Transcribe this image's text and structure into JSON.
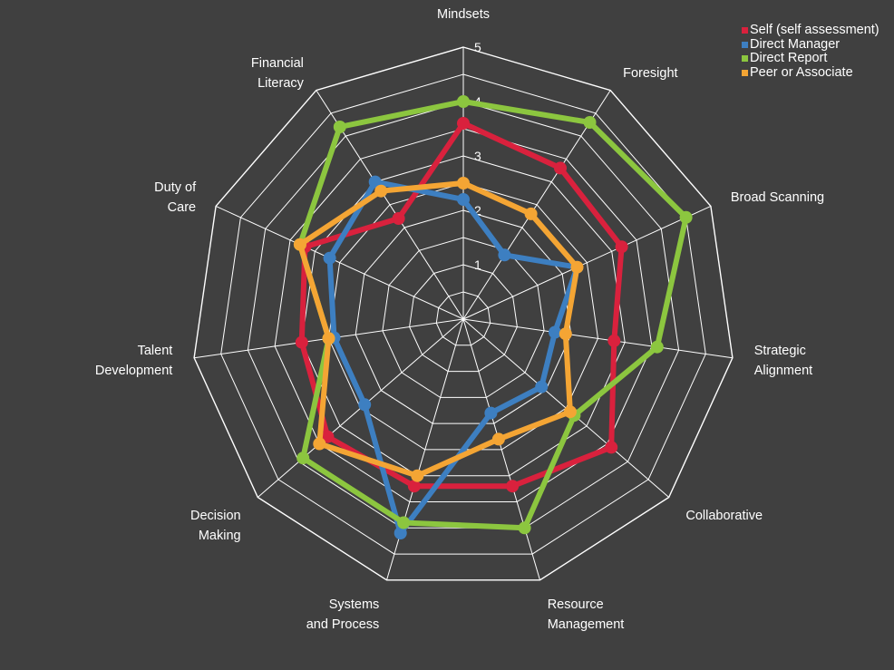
{
  "chart_data": {
    "type": "radar",
    "categories": [
      "Mindsets",
      "Foresight",
      "Broad Scanning",
      "Strategic Alignment",
      "Collaborative",
      "Resource Management",
      "Systems and Process",
      "Decision Making",
      "Talent Development",
      "Duty of Care",
      "Financial Literacy"
    ],
    "category_lines": [
      [
        "Mindsets"
      ],
      [
        "Foresight"
      ],
      [
        "Broad Scanning"
      ],
      [
        "Strategic",
        "Alignment"
      ],
      [
        "Collaborative"
      ],
      [
        "Resource",
        "Management"
      ],
      [
        "Systems",
        "and Process"
      ],
      [
        "Decision",
        "Making"
      ],
      [
        "Talent",
        "Development"
      ],
      [
        "Duty of",
        "Care"
      ],
      [
        "Financial",
        "Literacy"
      ]
    ],
    "rlim": [
      0,
      5
    ],
    "ticks": [
      "1",
      "2",
      "3",
      "4",
      "5"
    ],
    "grid": true,
    "legend_position": "top-right",
    "series": [
      {
        "name": "Self (self assessment)",
        "color": "#d9213d",
        "values": [
          3.6,
          3.3,
          3.2,
          2.8,
          3.6,
          3.2,
          3.2,
          3.3,
          3.0,
          3.2,
          2.2
        ]
      },
      {
        "name": "Direct Manager",
        "color": "#3d7fc1",
        "values": [
          2.2,
          1.4,
          2.3,
          1.7,
          1.9,
          1.8,
          4.1,
          2.4,
          2.4,
          2.7,
          3.0
        ]
      },
      {
        "name": "Direct Report",
        "color": "#8cc63f",
        "values": [
          4.0,
          4.3,
          4.5,
          3.6,
          2.7,
          4.0,
          3.9,
          3.9,
          2.5,
          3.3,
          4.2
        ]
      },
      {
        "name": "Peer or Associate",
        "color": "#f4a534",
        "values": [
          2.5,
          2.3,
          2.3,
          1.9,
          2.6,
          2.3,
          3.0,
          3.5,
          2.5,
          3.3,
          2.8
        ]
      }
    ]
  }
}
